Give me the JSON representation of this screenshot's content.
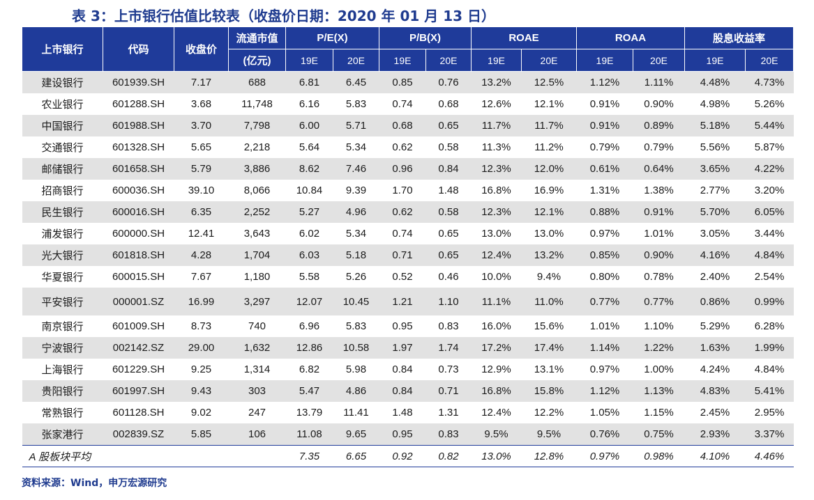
{
  "title": "表 3：上市银行估值比较表（收盘价日期：2020 年 01 月 13 日）",
  "source": "资料来源：Wind，申万宏源研究",
  "headers": {
    "bank": "上市银行",
    "code": "代码",
    "price": "收盘价",
    "mktcap": "流通市值",
    "mktcap_unit": "(亿元)",
    "pe": "P/E(X)",
    "pb": "P/B(X)",
    "roae": "ROAE",
    "roaa": "ROAA",
    "dividend": "股息收益率",
    "y19": "19E",
    "y20": "20E"
  },
  "rows": [
    [
      "建设银行",
      "601939.SH",
      "7.17",
      "688",
      "6.81",
      "6.45",
      "0.85",
      "0.76",
      "13.2%",
      "12.5%",
      "1.12%",
      "1.11%",
      "4.48%",
      "4.73%"
    ],
    [
      "农业银行",
      "601288.SH",
      "3.68",
      "11,748",
      "6.16",
      "5.83",
      "0.74",
      "0.68",
      "12.6%",
      "12.1%",
      "0.91%",
      "0.90%",
      "4.98%",
      "5.26%"
    ],
    [
      "中国银行",
      "601988.SH",
      "3.70",
      "7,798",
      "6.00",
      "5.71",
      "0.68",
      "0.65",
      "11.7%",
      "11.7%",
      "0.91%",
      "0.89%",
      "5.18%",
      "5.44%"
    ],
    [
      "交通银行",
      "601328.SH",
      "5.65",
      "2,218",
      "5.64",
      "5.34",
      "0.62",
      "0.58",
      "11.3%",
      "11.2%",
      "0.79%",
      "0.79%",
      "5.56%",
      "5.87%"
    ],
    [
      "邮储银行",
      "601658.SH",
      "5.79",
      "3,886",
      "8.62",
      "7.46",
      "0.96",
      "0.84",
      "12.3%",
      "12.0%",
      "0.61%",
      "0.64%",
      "3.65%",
      "4.22%"
    ],
    [
      "招商银行",
      "600036.SH",
      "39.10",
      "8,066",
      "10.84",
      "9.39",
      "1.70",
      "1.48",
      "16.8%",
      "16.9%",
      "1.31%",
      "1.38%",
      "2.77%",
      "3.20%"
    ],
    [
      "民生银行",
      "600016.SH",
      "6.35",
      "2,252",
      "5.27",
      "4.96",
      "0.62",
      "0.58",
      "12.3%",
      "12.1%",
      "0.88%",
      "0.91%",
      "5.70%",
      "6.05%"
    ],
    [
      "浦发银行",
      "600000.SH",
      "12.41",
      "3,643",
      "6.02",
      "5.34",
      "0.74",
      "0.65",
      "13.0%",
      "13.0%",
      "0.97%",
      "1.01%",
      "3.05%",
      "3.44%"
    ],
    [
      "光大银行",
      "601818.SH",
      "4.28",
      "1,704",
      "6.03",
      "5.18",
      "0.71",
      "0.65",
      "12.4%",
      "13.2%",
      "0.85%",
      "0.90%",
      "4.16%",
      "4.84%"
    ],
    [
      "华夏银行",
      "600015.SH",
      "7.67",
      "1,180",
      "5.58",
      "5.26",
      "0.52",
      "0.46",
      "10.0%",
      "9.4%",
      "0.80%",
      "0.78%",
      "2.40%",
      "2.54%"
    ],
    [
      "平安银行",
      "000001.SZ",
      "16.99",
      "3,297",
      "12.07",
      "10.45",
      "1.21",
      "1.10",
      "11.1%",
      "11.0%",
      "0.77%",
      "0.77%",
      "0.86%",
      "0.99%"
    ],
    [
      "南京银行",
      "601009.SH",
      "8.73",
      "740",
      "6.96",
      "5.83",
      "0.95",
      "0.83",
      "16.0%",
      "15.6%",
      "1.01%",
      "1.10%",
      "5.29%",
      "6.28%"
    ],
    [
      "宁波银行",
      "002142.SZ",
      "29.00",
      "1,632",
      "12.86",
      "10.58",
      "1.97",
      "1.74",
      "17.2%",
      "17.4%",
      "1.14%",
      "1.22%",
      "1.63%",
      "1.99%"
    ],
    [
      "上海银行",
      "601229.SH",
      "9.25",
      "1,314",
      "6.82",
      "5.98",
      "0.84",
      "0.73",
      "12.9%",
      "13.1%",
      "0.97%",
      "1.00%",
      "4.24%",
      "4.84%"
    ],
    [
      "贵阳银行",
      "601997.SH",
      "9.43",
      "303",
      "5.47",
      "4.86",
      "0.84",
      "0.71",
      "16.8%",
      "15.8%",
      "1.12%",
      "1.13%",
      "4.83%",
      "5.41%"
    ],
    [
      "常熟银行",
      "601128.SH",
      "9.02",
      "247",
      "13.79",
      "11.41",
      "1.48",
      "1.31",
      "12.4%",
      "12.2%",
      "1.05%",
      "1.15%",
      "2.45%",
      "2.95%"
    ],
    [
      "张家港行",
      "002839.SZ",
      "5.85",
      "106",
      "11.08",
      "9.65",
      "0.95",
      "0.83",
      "9.5%",
      "9.5%",
      "0.76%",
      "0.75%",
      "2.93%",
      "3.37%"
    ]
  ],
  "average": {
    "label": "A 股板块平均",
    "values": [
      "7.35",
      "6.65",
      "0.92",
      "0.82",
      "13.0%",
      "12.8%",
      "0.97%",
      "0.98%",
      "4.10%",
      "4.46%"
    ]
  }
}
